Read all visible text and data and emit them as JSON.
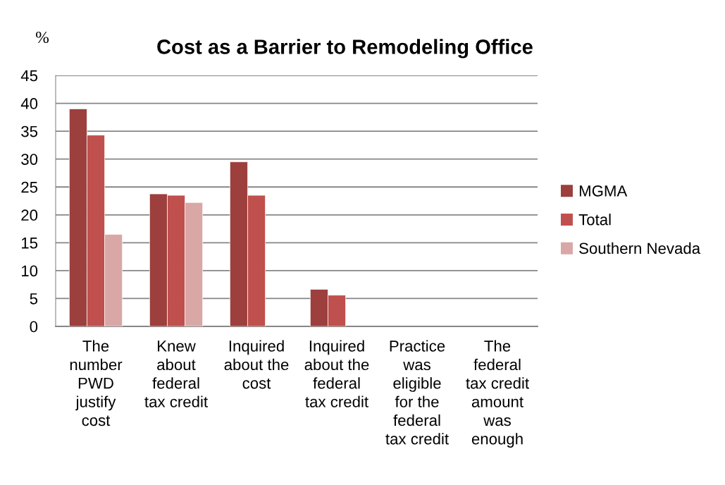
{
  "chart_data": {
    "type": "bar",
    "title": "Cost as a Barrier to Remodeling Office",
    "ylabel": "%",
    "categories": [
      "The\nnumber\nPWD\njustify\ncost",
      "Knew\nabout\nfederal\ntax credit",
      "Inquired\nabout the\ncost",
      "Inquired\nabout the\nfederal\ntax credit",
      "Practice\nwas\neligible\nfor the\nfederal\ntax credit",
      "The\nfederal\ntax credit\namount\nwas\nenough"
    ],
    "series": [
      {
        "name": "MGMA",
        "color": "#9c3f3d",
        "values": [
          39.0,
          23.75,
          29.5,
          6.65,
          null,
          null
        ]
      },
      {
        "name": "Total",
        "color": "#c0504d",
        "values": [
          34.3,
          23.5,
          23.5,
          5.6,
          null,
          null
        ]
      },
      {
        "name": "Southern Nevada",
        "color": "#d9a7a6",
        "values": [
          16.5,
          22.2,
          null,
          null,
          null,
          null
        ]
      }
    ],
    "ylim": [
      0,
      45
    ],
    "yticks": [
      0,
      5,
      10,
      15,
      20,
      25,
      30,
      35,
      40,
      45
    ],
    "grid": "y",
    "legend": "right"
  }
}
